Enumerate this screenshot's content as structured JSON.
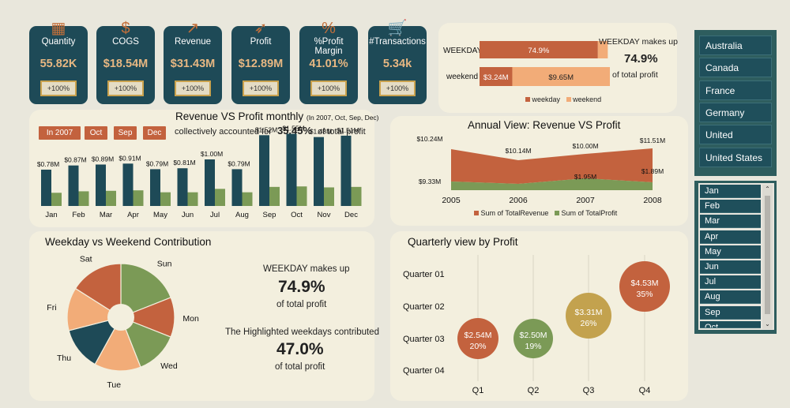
{
  "colors": {
    "teal": "#1e4a57",
    "orange": "#c3623e",
    "olive": "#7b9a56",
    "peach": "#f2ac78",
    "gold": "#c3a24e",
    "panel": "#f3efde",
    "background": "#e9e7dc"
  },
  "kpis": [
    {
      "label": "Quantity",
      "value": "55.82K",
      "button": "+100%",
      "icon": "boxes-icon"
    },
    {
      "label": "COGS",
      "value": "$18.54M",
      "button": "+100%",
      "icon": "money-hand-icon"
    },
    {
      "label": "Revenue",
      "value": "$31.43M",
      "button": "+100%",
      "icon": "growth-chart-icon"
    },
    {
      "label": "Profit",
      "value": "$12.89M",
      "button": "+100%",
      "icon": "rocket-icon"
    },
    {
      "label": "%Profit Margin",
      "value": "41.01%",
      "button": "+100%",
      "icon": "percent-tag-icon"
    },
    {
      "label": "#Transactions",
      "value": "5.34k",
      "button": "+100%",
      "icon": "cart-icon"
    }
  ],
  "weekday_bar": {
    "text_line1": "WEEKDAY makes up",
    "pct": "74.9%",
    "text_line2": "of total profit",
    "legend": [
      "weekday",
      "weekend"
    ]
  },
  "monthly_chart": {
    "title": "Revenue VS Profit monthly",
    "subtitle": "(In 2007, Oct, Sep, Dec)",
    "filters": [
      "In 2007",
      "Oct",
      "Sep",
      "Dec"
    ],
    "note_pre": "collectively accounted for",
    "note_pct": "35.45%",
    "note_post": "of total profit"
  },
  "annual_chart": {
    "title": "Annual View: Revenue VS Profit",
    "legend": [
      "Sum of TotalRevenue",
      "Sum of TotalProfit"
    ]
  },
  "pie_panel": {
    "title": "Weekday vs Weekend Contribution",
    "line1": "WEEKDAY makes up",
    "pct1": "74.9%",
    "line2": "of total profit",
    "line3": "The Highlighted weekdays contributed",
    "pct2": "47.0%",
    "line4": "of total profit"
  },
  "quarter_chart": {
    "title": "Quarterly view by Profit"
  },
  "countries": [
    "Australia",
    "Canada",
    "France",
    "Germany",
    "United Kingdom",
    "United States"
  ],
  "months": [
    "Jan",
    "Feb",
    "Mar",
    "Apr",
    "May",
    "Jun",
    "Jul",
    "Aug",
    "Sep",
    "Oct"
  ],
  "chart_data": [
    {
      "type": "bar",
      "categories": [
        "WEEKDAY",
        "weekend"
      ],
      "series": [
        {
          "name": "weekday",
          "values": [
            74.9,
            3.24
          ]
        },
        {
          "name": "weekend",
          "values": [
            0.9,
            9.65
          ]
        }
      ],
      "data_labels": [
        "74.9%",
        "$3.24M",
        "$9.65M"
      ],
      "legend": [
        "weekday",
        "weekend"
      ]
    },
    {
      "type": "bar",
      "title": "Revenue VS Profit monthly",
      "categories": [
        "Jan",
        "Feb",
        "Mar",
        "Apr",
        "May",
        "Jun",
        "Jul",
        "Aug",
        "Sep",
        "Oct",
        "Nov",
        "Dec"
      ],
      "series": [
        {
          "values": [
            0.78,
            0.87,
            0.89,
            0.91,
            0.79,
            0.81,
            1.0,
            0.79,
            1.52,
            1.55,
            1.48,
            1.51
          ],
          "labels": [
            "$0.78M",
            "$0.87M",
            "$0.89M",
            "$0.91M",
            "$0.79M",
            "$0.81M",
            "$1.00M",
            "$0.79M",
            "$1.52M",
            "$1.55M",
            "$1.48M",
            "$1.51M"
          ]
        },
        {
          "values": [
            0.27,
            0.3,
            0.31,
            0.32,
            0.28,
            0.28,
            0.35,
            0.28,
            0.39,
            0.4,
            0.38,
            0.39
          ]
        }
      ],
      "highlighted": [
        "Sep",
        "Oct",
        "Nov",
        "Dec"
      ],
      "ylim": [
        0,
        1.6
      ]
    },
    {
      "type": "area",
      "title": "Annual View: Revenue VS Profit",
      "x": [
        2005,
        2006,
        2007,
        2008
      ],
      "series": [
        {
          "name": "Sum of TotalRevenue",
          "values": [
            10.24,
            10.14,
            10.0,
            11.51
          ],
          "labels": [
            "$10.24M",
            "$10.14M",
            "$10.00M",
            "$11.51M"
          ]
        },
        {
          "name": "Sum of TotalProfit",
          "values": [
            9.33,
            0.0,
            1.95,
            1.89
          ],
          "labels": [
            "$9.33M",
            "",
            "$1.95M",
            "$1.89M"
          ]
        }
      ]
    },
    {
      "type": "pie",
      "title": "Weekday vs Weekend Contribution",
      "categories": [
        "Sun",
        "Mon",
        "Wed",
        "Tue",
        "Thu",
        "Fri",
        "Sat"
      ],
      "values": [
        19,
        12,
        13,
        14,
        13,
        13,
        16
      ],
      "colors": [
        "#7b9a56",
        "#c3623e",
        "#7b9a56",
        "#f2ac78",
        "#1e4a57",
        "#f2ac78",
        "#c3623e"
      ]
    },
    {
      "type": "scatter",
      "title": "Quarterly view by Profit",
      "categories": [
        "Q1",
        "Q2",
        "Q3",
        "Q4"
      ],
      "y_categories": [
        "Quarter 01",
        "Quarter 02",
        "Quarter 03",
        "Quarter 04"
      ],
      "values": [
        2.54,
        2.5,
        3.31,
        4.53
      ],
      "labels": [
        "$2.54M",
        "$2.50M",
        "$3.31M",
        "$4.53M"
      ],
      "pct": [
        "20%",
        "19%",
        "26%",
        "35%"
      ],
      "colors": [
        "#c3623e",
        "#7b9a56",
        "#c3a24e",
        "#c3623e"
      ]
    }
  ]
}
